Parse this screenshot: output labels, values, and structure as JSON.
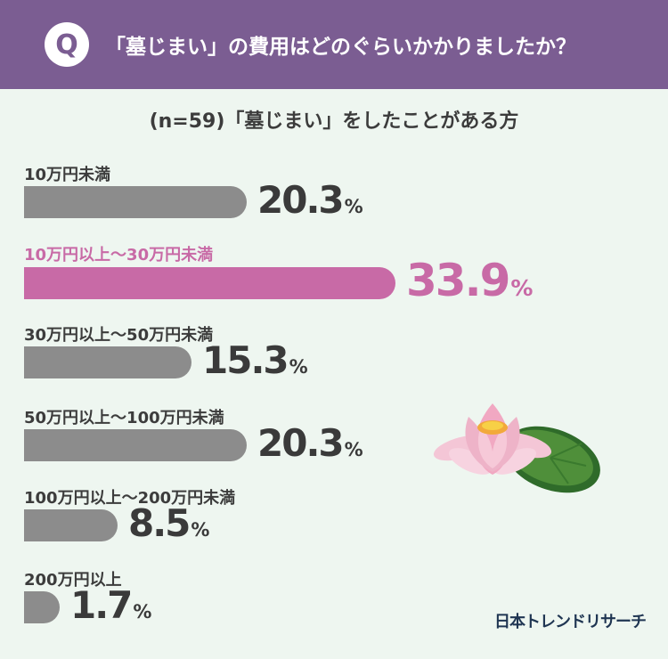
{
  "header": {
    "q_mark": "Q",
    "title": "「墓じまい」の費用はどのぐらいかかりましたか？"
  },
  "subtitle": "(n=59)「墓じまい」をしたことがある方",
  "logo_text": "日本トレンドリサーチ",
  "colors": {
    "header_bg": "#7b5d92",
    "background": "#eef6f0",
    "bar_default": "#8c8c8c",
    "bar_highlight": "#c86aa6"
  },
  "chart_data": {
    "type": "bar",
    "orientation": "horizontal",
    "categories": [
      "10万円未満",
      "10万円以上〜30万円未満",
      "30万円以上〜50万円未満",
      "50万円以上〜100万円未満",
      "100万円以上〜200万円未満",
      "200万円以上"
    ],
    "values": [
      20.3,
      33.9,
      15.3,
      20.3,
      8.5,
      1.7
    ],
    "value_labels": [
      "20.3",
      "33.9",
      "15.3",
      "20.3",
      "8.5",
      "1.7"
    ],
    "unit": "%",
    "highlight_index": 1,
    "xlim": [
      0,
      33.9
    ]
  }
}
